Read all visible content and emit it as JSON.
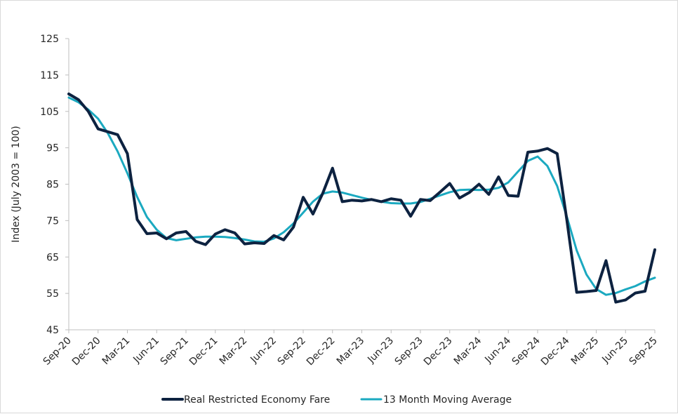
{
  "chart_data": {
    "type": "line",
    "title": "",
    "ylabel": "Index (July 2003 = 100)",
    "xlabel": "",
    "ylim": [
      45,
      125
    ],
    "yticks": [
      45,
      55,
      65,
      75,
      85,
      95,
      105,
      115,
      125
    ],
    "grid": false,
    "legend_position": "bottom",
    "x_tick_labels": [
      "Sep-20",
      "Dec-20",
      "Mar-21",
      "Jun-21",
      "Sep-21",
      "Dec-21",
      "Mar-22",
      "Jun-22",
      "Sep-22",
      "Dec-22",
      "Mar-23",
      "Jun-23",
      "Sep-23",
      "Dec-23",
      "Mar-24",
      "Jun-24",
      "Sep-24",
      "Dec-24",
      "Mar-25",
      "Jun-25",
      "Sep-25"
    ],
    "series": [
      {
        "name": "Real Restricted Economy Fare",
        "color": "#0d2240",
        "values": [
          109.8,
          108.2,
          105.0,
          100.2,
          99.4,
          98.6,
          93.4,
          75.3,
          71.4,
          71.6,
          70.0,
          71.6,
          72.0,
          69.3,
          68.4,
          71.3,
          72.5,
          71.6,
          68.6,
          68.9,
          68.7,
          70.9,
          69.7,
          73.2,
          81.4,
          76.8,
          82.5,
          89.4,
          80.2,
          80.6,
          80.4,
          80.8,
          80.2,
          81.0,
          80.6,
          76.2,
          80.8,
          80.5,
          82.8,
          85.2,
          81.2,
          82.7,
          85.0,
          82.2,
          87.0,
          81.9,
          81.7,
          93.8,
          94.1,
          94.8,
          93.4,
          75.0,
          55.3,
          55.5,
          55.8,
          64.0,
          52.6,
          53.2,
          55.1,
          55.6,
          67.0
        ]
      },
      {
        "name": "13 Month Moving Average",
        "color": "#1ba9c0",
        "values": [
          108.8,
          107.5,
          105.5,
          103.0,
          99.0,
          94.0,
          88.0,
          81.5,
          76.0,
          72.5,
          70.2,
          69.6,
          70.0,
          70.4,
          70.6,
          70.6,
          70.5,
          70.2,
          69.8,
          69.3,
          69.2,
          70.1,
          71.8,
          74.2,
          77.2,
          80.2,
          82.4,
          83.0,
          82.7,
          82.0,
          81.3,
          80.7,
          80.2,
          79.8,
          79.7,
          79.7,
          80.1,
          81.0,
          81.9,
          82.8,
          83.4,
          83.5,
          83.4,
          83.5,
          84.0,
          85.5,
          88.5,
          91.4,
          92.6,
          90.0,
          84.5,
          76.0,
          66.8,
          60.2,
          56.2,
          54.6,
          55.1,
          56.1,
          57.0,
          58.3,
          59.3
        ]
      }
    ]
  }
}
